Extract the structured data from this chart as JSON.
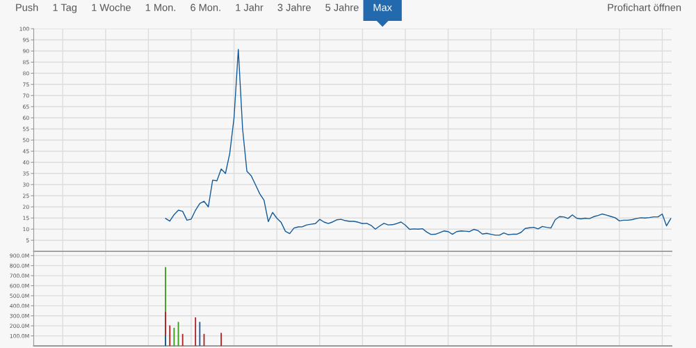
{
  "chart_data": [
    {
      "type": "other",
      "categories": [
        "Push",
        "1 Tag",
        "1 Woche",
        "1 Mon.",
        "6 Mon.",
        "1 Jahr",
        "3 Jahre",
        "5 Jahre",
        "Max"
      ],
      "colors": [
        null,
        null,
        null,
        null,
        null,
        null,
        null,
        null,
        "#2369ad"
      ],
      "annotations": [
        "Profichart öffnen"
      ]
    },
    {
      "type": "line",
      "categories": [
        null,
        null,
        null,
        null,
        null,
        null,
        null,
        null,
        null,
        null,
        null,
        null,
        null,
        null,
        null,
        null,
        null,
        null,
        null,
        null,
        null,
        null,
        null,
        null,
        null,
        null,
        null,
        null,
        null,
        null,
        null,
        null,
        null,
        null,
        null,
        null,
        null,
        null,
        null,
        null,
        null,
        null,
        null,
        null,
        null,
        null,
        null,
        null,
        null,
        null,
        null,
        null,
        null,
        null,
        null,
        null,
        null,
        null,
        null,
        null,
        null,
        null,
        null,
        null,
        null,
        null,
        null,
        null,
        null,
        null,
        null,
        null,
        null,
        null,
        null,
        null,
        null,
        null,
        null,
        null,
        null,
        null,
        null,
        null,
        null,
        null,
        null,
        null,
        null,
        null,
        null,
        null,
        null,
        null,
        null,
        null,
        null,
        null,
        null,
        null,
        null,
        null,
        null,
        null,
        null,
        null,
        null,
        null,
        null,
        null,
        null,
        null,
        null,
        null,
        null,
        null,
        null,
        null,
        null,
        null,
        null,
        null,
        null,
        null,
        null,
        null,
        null,
        null,
        null,
        null,
        null,
        null,
        null,
        null,
        null,
        null,
        null,
        null,
        null,
        null,
        null,
        null,
        null,
        null,
        null,
        null,
        null,
        null,
        null
      ],
      "color": "#105a9a",
      "values": [
        null,
        null,
        null,
        null,
        null,
        null,
        null,
        null,
        null,
        null,
        null,
        null,
        null,
        null,
        null,
        null,
        null,
        null,
        null,
        null,
        null,
        null,
        null,
        null,
        null,
        null,
        null,
        null,
        null,
        null,
        14.8,
        13.6,
        16.5,
        18.5,
        18,
        14,
        14.5,
        18.5,
        21.5,
        22.5,
        20,
        32,
        31.7,
        37,
        35,
        44,
        60,
        90.7,
        55,
        36,
        34,
        30,
        25.9,
        23,
        13.4,
        17.5,
        14.9,
        13,
        9,
        8,
        10.5,
        11,
        11.1,
        11.9,
        12.2,
        12.5,
        14.4,
        13.2,
        12.5,
        13.2,
        14.2,
        14.4,
        13.8,
        13.5,
        13.5,
        13.1,
        12.5,
        12.6,
        11.7,
        10,
        11.4,
        12.6,
        11.9,
        12,
        12.5,
        13.2,
        11.8,
        9.9,
        10.1,
        10,
        10.2,
        8.7,
        7.6,
        7.7,
        8.4,
        9.2,
        8.9,
        7.7,
        8.9,
        9.2,
        9.1,
        8.9,
        9.9,
        9.3,
        7.8,
        8.1,
        7.7,
        7.3,
        7.3,
        8.3,
        7.5,
        7.7,
        7.7,
        8.5,
        10.3,
        10.6,
        10.8,
        10.1,
        11.2,
        10.8,
        10.5,
        14.2,
        15.6,
        15.5,
        14.8,
        16.4,
        14.9,
        14.6,
        14.9,
        14.7,
        15.6,
        16.1,
        16.8,
        16.3,
        15.7,
        15.1,
        13.7,
        14,
        14,
        14.3,
        14.8,
        15.1,
        15,
        15.2,
        15.5,
        15.5,
        16.8,
        11.5,
        14.8
      ],
      "ylim": [
        0,
        100
      ],
      "yticks": [
        5,
        10,
        15,
        20,
        25,
        30,
        35,
        40,
        45,
        50,
        55,
        60,
        65,
        70,
        75,
        80,
        85,
        90,
        95,
        100
      ],
      "grid": true,
      "tick_labels": "y"
    },
    {
      "type": "bar",
      "categories": [
        null,
        null,
        null,
        null,
        null,
        null,
        null,
        null,
        null,
        null,
        null,
        null,
        null,
        null,
        null,
        null,
        null,
        null,
        null,
        null,
        null,
        null,
        null,
        null,
        null,
        null,
        null,
        null,
        null,
        null,
        null,
        null,
        null,
        null,
        null,
        null,
        null,
        null,
        null,
        null,
        null,
        null,
        null,
        null,
        null,
        null,
        null,
        null,
        null,
        null,
        null,
        null,
        null,
        null,
        null,
        null,
        null,
        null,
        null,
        null,
        null,
        null,
        null,
        null,
        null,
        null,
        null,
        null,
        null,
        null,
        null,
        null,
        null,
        null,
        null,
        null,
        null,
        null,
        null,
        null,
        null,
        null,
        null,
        null,
        null,
        null,
        null,
        null,
        null,
        null,
        null,
        null,
        null,
        null,
        null,
        null,
        null,
        null,
        null,
        null,
        null,
        null,
        null,
        null,
        null,
        null,
        null,
        null,
        null,
        null,
        null,
        null,
        null,
        null,
        null,
        null,
        null,
        null,
        null,
        null,
        null,
        null,
        null,
        null,
        null,
        null,
        null,
        null,
        null,
        null,
        null,
        null,
        null,
        null,
        null,
        null,
        null,
        null,
        null,
        null,
        null,
        null,
        null,
        null,
        null,
        null,
        null,
        null,
        null
      ],
      "series": [
        {
          "color": "#3c9a1e",
          "values": [
            null,
            null,
            null,
            null,
            null,
            null,
            null,
            null,
            null,
            null,
            null,
            null,
            null,
            null,
            null,
            null,
            null,
            null,
            null,
            null,
            null,
            null,
            null,
            null,
            null,
            null,
            null,
            null,
            null,
            null,
            785000000,
            null,
            180000000,
            240000000,
            null,
            null,
            null,
            null,
            null,
            null,
            null,
            null,
            null,
            null,
            null,
            null,
            null,
            null,
            null,
            null,
            null,
            null,
            null,
            null,
            null,
            null,
            null,
            null,
            null,
            null,
            null,
            null,
            null,
            null,
            null,
            null,
            null,
            null,
            null,
            null,
            null,
            null,
            null,
            null,
            null,
            null,
            null,
            null,
            null,
            null,
            null,
            null,
            null,
            null,
            null,
            null,
            null,
            null,
            null,
            null,
            null,
            null,
            null,
            null,
            null,
            null,
            null,
            null,
            null,
            null,
            null,
            null,
            null,
            null,
            null,
            null,
            null,
            null,
            null,
            null,
            null,
            null,
            null,
            null,
            null,
            null,
            null,
            null,
            null,
            null,
            null,
            null,
            null,
            null,
            null,
            null,
            null,
            null,
            null,
            null,
            null,
            null,
            null,
            null,
            null,
            null,
            null,
            null,
            null,
            null,
            null,
            null,
            null,
            null,
            null,
            null,
            null,
            null,
            null
          ]
        },
        {
          "color": "#b22222",
          "values": [
            null,
            null,
            null,
            null,
            null,
            null,
            null,
            null,
            null,
            null,
            null,
            null,
            null,
            null,
            null,
            null,
            null,
            null,
            null,
            null,
            null,
            null,
            null,
            null,
            null,
            null,
            null,
            null,
            null,
            null,
            340000000,
            205000000,
            null,
            null,
            120000000,
            null,
            null,
            285000000,
            null,
            120000000,
            null,
            null,
            null,
            130000000,
            null,
            null,
            null,
            null,
            null,
            null,
            null,
            null,
            null,
            null,
            null,
            null,
            null,
            null,
            null,
            null,
            null,
            null,
            null,
            null,
            null,
            null,
            null,
            null,
            null,
            null,
            null,
            null,
            null,
            null,
            null,
            null,
            null,
            null,
            null,
            null,
            null,
            null,
            null,
            null,
            null,
            null,
            null,
            null,
            null,
            null,
            null,
            null,
            null,
            null,
            null,
            null,
            null,
            null,
            null,
            null,
            null,
            null,
            null,
            null,
            null,
            null,
            null,
            null,
            null,
            null,
            null,
            null,
            null,
            null,
            null,
            null,
            null,
            null,
            null,
            null,
            null,
            null,
            null,
            null,
            null,
            null,
            null,
            null,
            null,
            null,
            null,
            null,
            null,
            null,
            null,
            null,
            null,
            null,
            null,
            null,
            null,
            null,
            null,
            null,
            null,
            null,
            null,
            null,
            null
          ]
        },
        {
          "color": "#1a5aa0",
          "values": [
            null,
            null,
            null,
            null,
            null,
            null,
            null,
            null,
            null,
            null,
            null,
            null,
            null,
            null,
            null,
            null,
            null,
            null,
            null,
            null,
            null,
            null,
            null,
            null,
            null,
            null,
            null,
            null,
            null,
            null,
            105000000,
            null,
            null,
            null,
            null,
            null,
            null,
            null,
            240000000,
            null,
            null,
            null,
            null,
            null,
            null,
            null,
            null,
            null,
            null,
            null,
            null,
            null,
            null,
            null,
            null,
            null,
            null,
            null,
            null,
            null,
            null,
            null,
            null,
            null,
            null,
            null,
            null,
            null,
            null,
            null,
            null,
            null,
            null,
            null,
            null,
            null,
            null,
            null,
            null,
            null,
            null,
            null,
            null,
            null,
            null,
            null,
            null,
            null,
            null,
            null,
            null,
            null,
            null,
            null,
            null,
            null,
            null,
            null,
            null,
            null,
            null,
            null,
            null,
            null,
            null,
            null,
            null,
            null,
            null,
            null,
            null,
            null,
            null,
            null,
            null,
            null,
            null,
            null,
            null,
            null,
            null,
            null,
            null,
            null,
            null,
            null,
            null,
            null,
            null,
            null,
            null,
            null,
            null,
            null,
            null,
            null,
            null,
            null,
            null,
            null,
            null,
            null,
            null,
            null,
            null,
            null,
            null,
            null,
            null
          ]
        }
      ],
      "ylim": [
        0,
        935000000
      ],
      "yticks": [
        {
          "value": 100000000,
          "label": "100.0M"
        },
        {
          "value": 200000000,
          "label": "200.0M"
        },
        {
          "value": 300000000,
          "label": "300.0M"
        },
        {
          "value": 400000000,
          "label": "400.0M"
        },
        {
          "value": 500000000,
          "label": "500.0M"
        },
        {
          "value": 600000000,
          "label": "600.0M"
        },
        {
          "value": 700000000,
          "label": "700.0M"
        },
        {
          "value": 800000000,
          "label": "800.0M"
        },
        {
          "value": 900000000,
          "label": "900.0M"
        }
      ],
      "grid": true,
      "tick_labels": "y"
    }
  ]
}
